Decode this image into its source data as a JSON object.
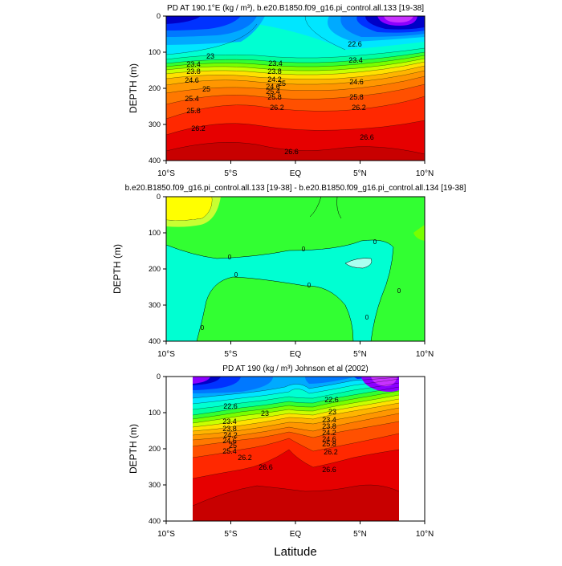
{
  "chart_data": [
    {
      "type": "contour",
      "title": "PD AT 190.1°E (kg / m³), b.e20.B1850.f09_g16.pi_control.all.133 [19-38]",
      "ylabel": "DEPTH (m)",
      "xlabel": "",
      "xlim": [
        -10,
        10
      ],
      "ylim": [
        400,
        0
      ],
      "xticks": [
        "10°S",
        "5°S",
        "EQ",
        "5°N",
        "10°N"
      ],
      "yticks": [
        "0",
        "100",
        "200",
        "300",
        "400"
      ],
      "contour_labels": [
        "22.6",
        "23",
        "23.4",
        "23.4",
        "23.4",
        "23.8",
        "23.8",
        "24.2",
        "24.6",
        "24.6",
        "24.6",
        "25",
        "25",
        "25.4",
        "25.4",
        "25.8",
        "25.8",
        "25.8",
        "26.2",
        "26.2",
        "26.2",
        "26.6",
        "26.6"
      ],
      "levels": [
        22.6,
        23.0,
        23.4,
        23.8,
        24.2,
        24.6,
        25.0,
        25.4,
        25.8,
        26.2,
        26.6
      ]
    },
    {
      "type": "contour",
      "title": "b.e20.B1850.f09_g16.pi_control.all.133 [19-38] - b.e20.B1850.f09_g16.pi_control.all.134 [19-38]",
      "ylabel": "DEPTH (m)",
      "xlabel": "",
      "xlim": [
        -10,
        10
      ],
      "ylim": [
        400,
        0
      ],
      "xticks": [
        "10°S",
        "5°S",
        "EQ",
        "5°N",
        "10°N"
      ],
      "yticks": [
        "0",
        "100",
        "200",
        "300",
        "400"
      ],
      "contour_labels": [
        "0",
        "0",
        "0",
        "0",
        "0",
        "0",
        "0",
        "0"
      ],
      "levels": [
        0
      ]
    },
    {
      "type": "contour",
      "title": "PD AT 190 (kg / m³) Johnson et al (2002)",
      "ylabel": "DEPTH (m)",
      "xlabel": "Latitude",
      "xlim": [
        -10,
        10
      ],
      "ylim": [
        400,
        0
      ],
      "data_xrange": [
        -8,
        8
      ],
      "xticks": [
        "10°S",
        "5°S",
        "EQ",
        "5°N",
        "10°N"
      ],
      "yticks": [
        "0",
        "100",
        "200",
        "300",
        "400"
      ],
      "contour_labels": [
        "22.6",
        "22.6",
        "23",
        "23",
        "23.4",
        "23.4",
        "23.8",
        "23.8",
        "24.2",
        "24.2",
        "24.6",
        "24.6",
        "25",
        "25.4",
        "25.8",
        "26.2",
        "26.2",
        "26.6",
        "26.6"
      ],
      "levels": [
        22.6,
        23.0,
        23.4,
        23.8,
        24.2,
        24.6,
        25.0,
        25.4,
        25.8,
        26.2,
        26.6
      ]
    }
  ]
}
